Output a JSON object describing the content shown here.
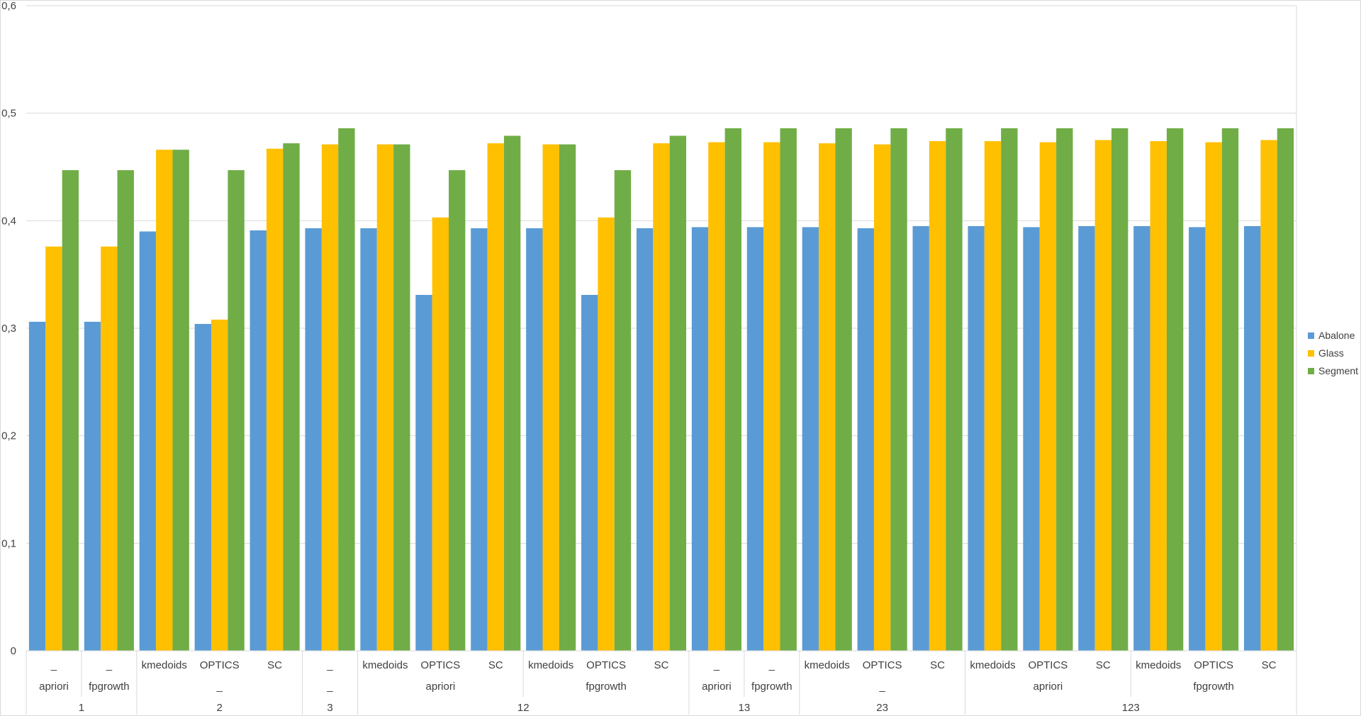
{
  "chart_data": {
    "type": "bar",
    "title": "",
    "xlabel": "",
    "ylabel": "",
    "ylim": [
      0,
      0.6
    ],
    "yticks": [
      "0",
      "0,1",
      "0,2",
      "0,3",
      "0,4",
      "0,5",
      "0,6"
    ],
    "grid": "horizontal",
    "legend_position": "right",
    "categories": [
      [
        "_",
        "apriori",
        "1"
      ],
      [
        "_",
        "fpgrowth",
        "1"
      ],
      [
        "kmedoids",
        "_",
        "2"
      ],
      [
        "OPTICS",
        "_",
        "2"
      ],
      [
        "SC",
        "_",
        "2"
      ],
      [
        "_",
        "_",
        "3"
      ],
      [
        "kmedoids",
        "apriori",
        "12"
      ],
      [
        "OPTICS",
        "apriori",
        "12"
      ],
      [
        "SC",
        "apriori",
        "12"
      ],
      [
        "kmedoids",
        "fpgrowth",
        "12"
      ],
      [
        "OPTICS",
        "fpgrowth",
        "12"
      ],
      [
        "SC",
        "fpgrowth",
        "12"
      ],
      [
        "_",
        "apriori",
        "13"
      ],
      [
        "_",
        "fpgrowth",
        "13"
      ],
      [
        "kmedoids",
        "_",
        "23"
      ],
      [
        "OPTICS",
        "_",
        "23"
      ],
      [
        "SC",
        "_",
        "23"
      ],
      [
        "kmedoids",
        "apriori",
        "123"
      ],
      [
        "OPTICS",
        "apriori",
        "123"
      ],
      [
        "SC",
        "apriori",
        "123"
      ],
      [
        "kmedoids",
        "fpgrowth",
        "123"
      ],
      [
        "OPTICS",
        "fpgrowth",
        "123"
      ],
      [
        "SC",
        "fpgrowth",
        "123"
      ]
    ],
    "level1_labels": [
      "_",
      "_",
      "kmedoids",
      "OPTICS",
      "SC",
      "_",
      "kmedoids",
      "OPTICS",
      "SC",
      "kmedoids",
      "OPTICS",
      "SC",
      "_",
      "_",
      "kmedoids",
      "OPTICS",
      "SC",
      "kmedoids",
      "OPTICS",
      "SC",
      "kmedoids",
      "OPTICS",
      "SC"
    ],
    "level2_groups": [
      {
        "label": "apriori",
        "count": 1
      },
      {
        "label": "fpgrowth",
        "count": 1
      },
      {
        "label": "_",
        "count": 3
      },
      {
        "label": "_",
        "count": 1
      },
      {
        "label": "apriori",
        "count": 3
      },
      {
        "label": "fpgrowth",
        "count": 3
      },
      {
        "label": "apriori",
        "count": 1
      },
      {
        "label": "fpgrowth",
        "count": 1
      },
      {
        "label": "_",
        "count": 3
      },
      {
        "label": "apriori",
        "count": 3
      },
      {
        "label": "fpgrowth",
        "count": 3
      }
    ],
    "level3_groups": [
      {
        "label": "1",
        "count": 2
      },
      {
        "label": "2",
        "count": 3
      },
      {
        "label": "3",
        "count": 1
      },
      {
        "label": "12",
        "count": 6
      },
      {
        "label": "13",
        "count": 2
      },
      {
        "label": "23",
        "count": 3
      },
      {
        "label": "123",
        "count": 6
      }
    ],
    "series": [
      {
        "name": "Abalone",
        "color": "#5b9bd5",
        "values": [
          0.306,
          0.306,
          0.39,
          0.304,
          0.391,
          0.393,
          0.393,
          0.331,
          0.393,
          0.393,
          0.331,
          0.393,
          0.394,
          0.394,
          0.394,
          0.393,
          0.395,
          0.395,
          0.394,
          0.395,
          0.395,
          0.394,
          0.395
        ]
      },
      {
        "name": "Glass",
        "color": "#ffc000",
        "values": [
          0.376,
          0.376,
          0.466,
          0.308,
          0.467,
          0.471,
          0.471,
          0.403,
          0.472,
          0.471,
          0.403,
          0.472,
          0.473,
          0.473,
          0.472,
          0.471,
          0.474,
          0.474,
          0.473,
          0.475,
          0.474,
          0.473,
          0.475
        ]
      },
      {
        "name": "Segment",
        "color": "#70ad47",
        "values": [
          0.447,
          0.447,
          0.466,
          0.447,
          0.472,
          0.486,
          0.471,
          0.447,
          0.479,
          0.471,
          0.447,
          0.479,
          0.486,
          0.486,
          0.486,
          0.486,
          0.486,
          0.486,
          0.486,
          0.486,
          0.486,
          0.486,
          0.486
        ]
      }
    ]
  }
}
